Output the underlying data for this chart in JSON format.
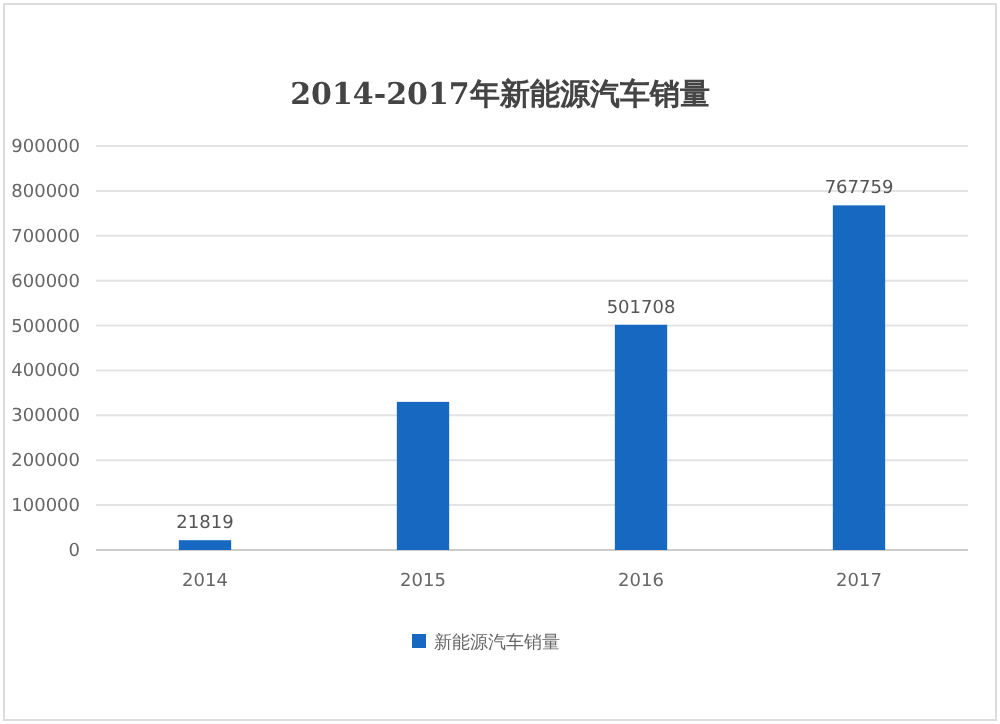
{
  "chart_data": {
    "type": "bar",
    "title": "2014-2017年新能源汽车销量",
    "categories": [
      "2014",
      "2015",
      "2016",
      "2017"
    ],
    "series": [
      {
        "name": "新能源汽车销量",
        "color": "#1668c0",
        "values": [
          21819,
          330000,
          501708,
          767759
        ],
        "value_labels": [
          "21819",
          null,
          "501708",
          "767759"
        ]
      }
    ],
    "ylim": [
      0,
      900000
    ],
    "yticks": [
      0,
      100000,
      200000,
      300000,
      400000,
      500000,
      600000,
      700000,
      800000,
      900000
    ],
    "grid": "y",
    "legend": "bottom"
  }
}
